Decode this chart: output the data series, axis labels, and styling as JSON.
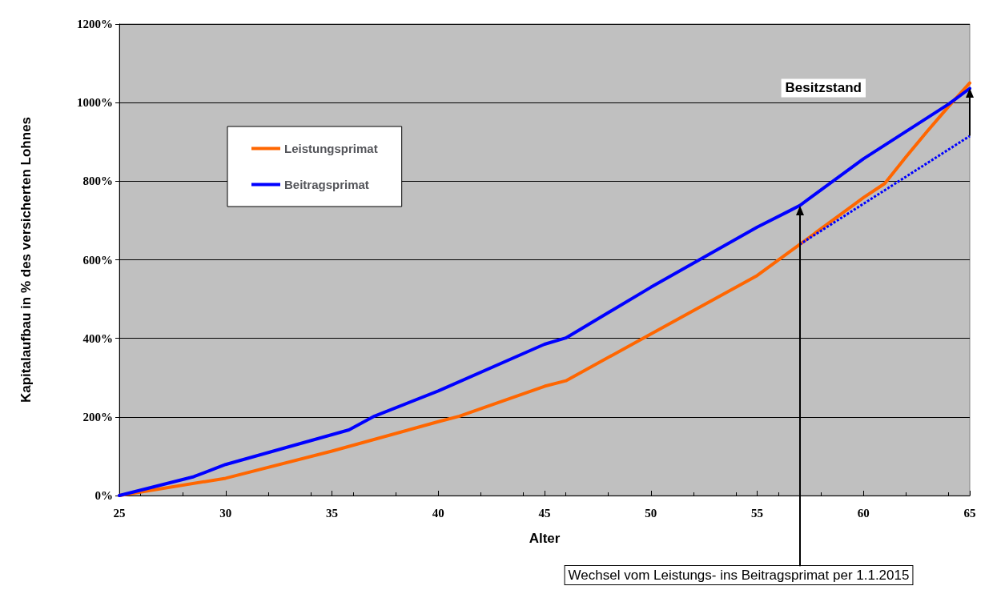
{
  "chart_data": {
    "type": "line",
    "xlabel": "Alter",
    "ylabel": "Kapitalaufbau in % des versicherten Lohnes",
    "xlim": [
      25,
      65
    ],
    "xticks": [
      25,
      30,
      35,
      40,
      45,
      50,
      55,
      60,
      65
    ],
    "ylim": [
      0,
      1200
    ],
    "yticks": [
      {
        "value": 0,
        "label": "0%"
      },
      {
        "value": 200,
        "label": "200%"
      },
      {
        "value": 400,
        "label": "400%"
      },
      {
        "value": 600,
        "label": "600%"
      },
      {
        "value": 800,
        "label": "800%"
      },
      {
        "value": 1000,
        "label": "1000%"
      },
      {
        "value": 1200,
        "label": "1200%"
      }
    ],
    "grid": "y",
    "legend": "top left",
    "marker": "none",
    "series": [
      {
        "name": "Leistungsprimat",
        "color": "#ff6600",
        "x": [
          25,
          30,
          35,
          40,
          41,
          45,
          46,
          50,
          55,
          57,
          60,
          61,
          62,
          63,
          64,
          65
        ],
        "values": [
          0,
          44,
          113,
          188,
          202,
          278,
          292,
          411,
          560,
          639,
          758,
          794,
          862,
          927,
          990,
          1050
        ]
      },
      {
        "name": "Beitragsprimat",
        "color": "#0000ff",
        "x": [
          25,
          28.5,
          30,
          35.8,
          37,
          40,
          45,
          46,
          50,
          55,
          56.5,
          57,
          60,
          64,
          65
        ],
        "values": [
          0,
          48,
          79,
          167,
          202,
          266,
          385,
          401,
          530,
          683,
          724,
          738,
          857,
          996,
          1036
        ]
      },
      {
        "color": "#0000ff",
        "line_style": "dotted",
        "x": [
          57,
          65
        ],
        "values": [
          639,
          915
        ]
      }
    ],
    "annotations": [
      "Besitzstand",
      "Wechsel vom Leistungs- ins Beitragsprimat per 1.1.2015"
    ]
  }
}
